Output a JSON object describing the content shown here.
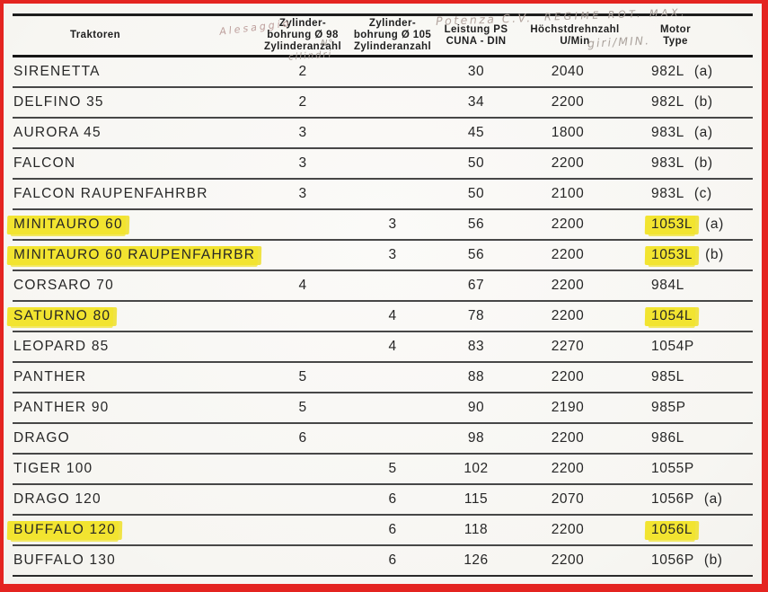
{
  "colors": {
    "frame_red": "#e42420",
    "paper": "#f9f8f5",
    "highlight_yellow": "#f2e430",
    "print_ink": "#262626",
    "pencil_gray": "#a89e98"
  },
  "table": {
    "headers": {
      "tractors": "Traktoren",
      "bore98": [
        "Zylinder-",
        "bohrung Ø 98",
        "Zylinderanzahl"
      ],
      "bore105": [
        "Zylinder-",
        "bohrung Ø 105",
        "Zylinderanzahl"
      ],
      "power": [
        "Leistung PS",
        "CUNA - DIN"
      ],
      "rpm": [
        "Höchstdrehnzahl",
        "U/Min"
      ],
      "motor": [
        "Motor",
        "Type"
      ]
    },
    "handwritten": {
      "alesaggio": "Alesaggio",
      "n_cilindri": "N°",
      "cilindri": "cilindri",
      "potenza": "Potenza C.V.",
      "regime": "REGIME ROT. MAX.",
      "giri": "giri/MIN."
    },
    "rows": [
      {
        "name": "SIRENETTA",
        "cyl98": "2",
        "cyl105": "",
        "ps": "30",
        "rpm": "2040",
        "motor": "982L",
        "suffix": "(a)",
        "highlighted": false
      },
      {
        "name": "DELFINO 35",
        "cyl98": "2",
        "cyl105": "",
        "ps": "34",
        "rpm": "2200",
        "motor": "982L",
        "suffix": "(b)",
        "highlighted": false
      },
      {
        "name": "AURORA 45",
        "cyl98": "3",
        "cyl105": "",
        "ps": "45",
        "rpm": "1800",
        "motor": "983L",
        "suffix": "(a)",
        "highlighted": false
      },
      {
        "name": "FALCON",
        "cyl98": "3",
        "cyl105": "",
        "ps": "50",
        "rpm": "2200",
        "motor": "983L",
        "suffix": "(b)",
        "highlighted": false
      },
      {
        "name": "FALCON RAUPENFAHRBR",
        "cyl98": "3",
        "cyl105": "",
        "ps": "50",
        "rpm": "2100",
        "motor": "983L",
        "suffix": "(c)",
        "highlighted": false
      },
      {
        "name": "MINITAURO 60",
        "cyl98": "",
        "cyl105": "3",
        "ps": "56",
        "rpm": "2200",
        "motor": "1053L",
        "suffix": "(a)",
        "highlighted": true
      },
      {
        "name": "MINITAURO 60 RAUPENFAHRBR",
        "cyl98": "",
        "cyl105": "3",
        "ps": "56",
        "rpm": "2200",
        "motor": "1053L",
        "suffix": "(b)",
        "highlighted": true
      },
      {
        "name": "CORSARO 70",
        "cyl98": "4",
        "cyl105": "",
        "ps": "67",
        "rpm": "2200",
        "motor": "984L",
        "suffix": "",
        "highlighted": false
      },
      {
        "name": "SATURNO 80",
        "cyl98": "",
        "cyl105": "4",
        "ps": "78",
        "rpm": "2200",
        "motor": "1054L",
        "suffix": "",
        "highlighted": true
      },
      {
        "name": "LEOPARD 85",
        "cyl98": "",
        "cyl105": "4",
        "ps": "83",
        "rpm": "2270",
        "motor": "1054P",
        "suffix": "",
        "highlighted": false
      },
      {
        "name": "PANTHER",
        "cyl98": "5",
        "cyl105": "",
        "ps": "88",
        "rpm": "2200",
        "motor": "985L",
        "suffix": "",
        "highlighted": false
      },
      {
        "name": "PANTHER 90",
        "cyl98": "5",
        "cyl105": "",
        "ps": "90",
        "rpm": "2190",
        "motor": "985P",
        "suffix": "",
        "highlighted": false
      },
      {
        "name": "DRAGO",
        "cyl98": "6",
        "cyl105": "",
        "ps": "98",
        "rpm": "2200",
        "motor": "986L",
        "suffix": "",
        "highlighted": false
      },
      {
        "name": "TIGER 100",
        "cyl98": "",
        "cyl105": "5",
        "ps": "102",
        "rpm": "2200",
        "motor": "1055P",
        "suffix": "",
        "highlighted": false
      },
      {
        "name": "DRAGO 120",
        "cyl98": "",
        "cyl105": "6",
        "ps": "115",
        "rpm": "2070",
        "motor": "1056P",
        "suffix": "(a)",
        "highlighted": false
      },
      {
        "name": "BUFFALO 120",
        "cyl98": "",
        "cyl105": "6",
        "ps": "118",
        "rpm": "2200",
        "motor": "1056L",
        "suffix": "",
        "highlighted": true
      },
      {
        "name": "BUFFALO 130",
        "cyl98": "",
        "cyl105": "6",
        "ps": "126",
        "rpm": "2200",
        "motor": "1056P",
        "suffix": "(b)",
        "highlighted": false
      }
    ]
  }
}
